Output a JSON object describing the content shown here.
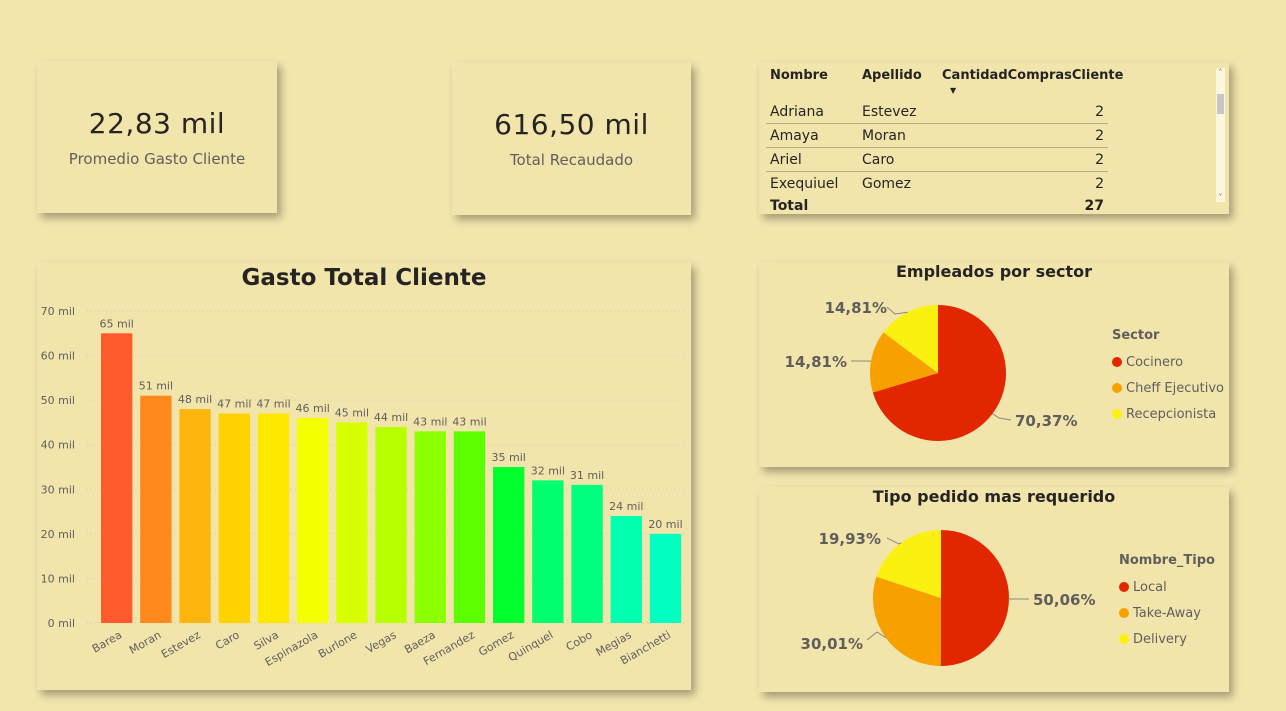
{
  "kpi_left": {
    "value": "22,83 mil",
    "label": "Promedio Gasto Cliente"
  },
  "kpi_mid": {
    "value": "616,50 mil",
    "label": "Total Recaudado"
  },
  "table": {
    "headers": [
      "Nombre",
      "Apellido",
      "CantidadComprasCliente"
    ],
    "rows": [
      [
        "Adriana",
        "Estevez",
        "2"
      ],
      [
        "Amaya",
        "Moran",
        "2"
      ],
      [
        "Ariel",
        "Caro",
        "2"
      ],
      [
        "Exequiuel",
        "Gomez",
        "2"
      ]
    ],
    "total_label": "Total",
    "total_value": "27"
  },
  "chart_data": [
    {
      "type": "bar",
      "title": "Gasto Total Cliente",
      "categories": [
        "Barea",
        "Moran",
        "Estevez",
        "Caro",
        "Silva",
        "Espinazola",
        "Burlone",
        "Vegas",
        "Baeza",
        "Fernandez",
        "Gomez",
        "Quinquel",
        "Cobo",
        "Megias",
        "Bianchetti"
      ],
      "values": [
        65000,
        51000,
        48000,
        47000,
        47000,
        46000,
        45000,
        44000,
        43000,
        43000,
        35000,
        32000,
        31000,
        24000,
        20000
      ],
      "data_labels": [
        "65 mil",
        "51 mil",
        "48 mil",
        "47 mil",
        "47 mil",
        "46 mil",
        "45 mil",
        "44 mil",
        "43 mil",
        "43 mil",
        "35 mil",
        "32 mil",
        "31 mil",
        "24 mil",
        "20 mil"
      ],
      "colors": [
        "#ff5b2c",
        "#ff891c",
        "#ffb60c",
        "#ffd200",
        "#ffe800",
        "#f4ff00",
        "#d8ff00",
        "#b8ff00",
        "#8cff00",
        "#5cff00",
        "#00ff2c",
        "#00ff6e",
        "#00ff7e",
        "#00ffae",
        "#00ffc0"
      ],
      "ylim": [
        0,
        70000
      ],
      "yticks": [
        0,
        10000,
        20000,
        30000,
        40000,
        50000,
        60000,
        70000
      ],
      "ytick_labels": [
        "0 mil",
        "10 mil",
        "20 mil",
        "30 mil",
        "40 mil",
        "50 mil",
        "60 mil",
        "70 mil"
      ],
      "grid": true
    },
    {
      "type": "pie",
      "title": "Empleados por sector",
      "legend_title": "Sector",
      "legend_position": "right",
      "labels": [
        "Cocinero",
        "Cheff Ejecutivo",
        "Recepcionista"
      ],
      "values": [
        70.37,
        14.81,
        14.81
      ],
      "value_labels": [
        "70,37%",
        "14,81%",
        "14,81%"
      ],
      "colors": [
        "#e12600",
        "#f8a000",
        "#fbf110"
      ]
    },
    {
      "type": "pie",
      "title": "Tipo pedido mas requerido",
      "legend_title": "Nombre_Tipo",
      "legend_position": "right",
      "labels": [
        "Local",
        "Take-Away",
        "Delivery"
      ],
      "values": [
        50.06,
        30.01,
        19.93
      ],
      "value_labels": [
        "50,06%",
        "30,01%",
        "19,93%"
      ],
      "colors": [
        "#e12600",
        "#f8a000",
        "#fbf110"
      ]
    }
  ]
}
